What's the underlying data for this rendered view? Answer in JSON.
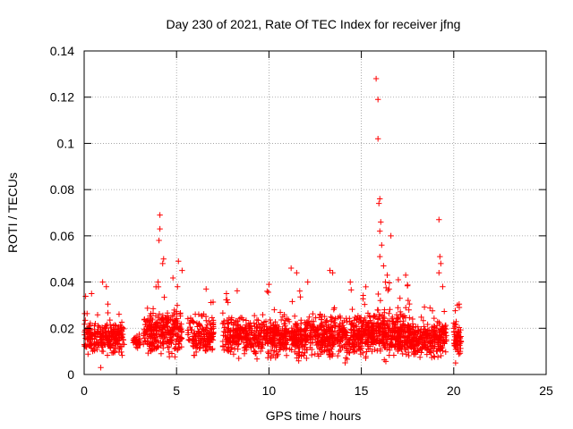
{
  "chart_data": {
    "type": "scatter",
    "title": "Day 230 of 2021, Rate Of TEC Index for receiver jfng",
    "xlabel": "GPS time / hours",
    "ylabel": "ROTI / TECUs",
    "xlim": [
      0,
      25
    ],
    "ylim": [
      0,
      0.14
    ],
    "x_ticks": [
      0,
      5,
      10,
      15,
      20,
      25
    ],
    "y_ticks": [
      0,
      0.02,
      0.04,
      0.06,
      0.08,
      0.1,
      0.12,
      0.14
    ],
    "grid": true,
    "marker": "+",
    "color": "#ff0000",
    "x_tick_labels": [
      "0",
      "5",
      "10",
      "15",
      "20",
      "25"
    ],
    "y_tick_labels": [
      "0",
      "0.02",
      "0.04",
      "0.06",
      "0.08",
      "0.1",
      "0.12",
      "0.14"
    ],
    "segments": [
      {
        "x_start": 0.0,
        "x_end": 2.2,
        "y_base": 0.016,
        "y_spread": 0.006,
        "count": 260
      },
      {
        "x_start": 2.65,
        "x_end": 3.05,
        "y_base": 0.014,
        "y_spread": 0.003,
        "count": 30
      },
      {
        "x_start": 3.2,
        "x_end": 5.3,
        "y_base": 0.018,
        "y_spread": 0.008,
        "count": 300
      },
      {
        "x_start": 5.6,
        "x_end": 7.0,
        "y_base": 0.017,
        "y_spread": 0.007,
        "count": 160
      },
      {
        "x_start": 7.5,
        "x_end": 13.0,
        "y_base": 0.016,
        "y_spread": 0.007,
        "count": 700
      },
      {
        "x_start": 13.0,
        "x_end": 17.6,
        "y_base": 0.017,
        "y_spread": 0.008,
        "count": 700
      },
      {
        "x_start": 17.6,
        "x_end": 19.6,
        "y_base": 0.015,
        "y_spread": 0.006,
        "count": 280
      },
      {
        "x_start": 20.0,
        "x_end": 20.4,
        "y_base": 0.015,
        "y_spread": 0.006,
        "count": 60
      }
    ],
    "points": [
      [
        15.8,
        0.128
      ],
      [
        15.9,
        0.119
      ],
      [
        15.9,
        0.102
      ],
      [
        16.0,
        0.076
      ],
      [
        15.95,
        0.074
      ],
      [
        16.05,
        0.066
      ],
      [
        16.0,
        0.062
      ],
      [
        16.1,
        0.056
      ],
      [
        16.0,
        0.051
      ],
      [
        16.2,
        0.047
      ],
      [
        16.4,
        0.043
      ],
      [
        16.6,
        0.06
      ],
      [
        16.3,
        0.04
      ],
      [
        16.5,
        0.037
      ],
      [
        4.1,
        0.069
      ],
      [
        4.1,
        0.063
      ],
      [
        4.05,
        0.058
      ],
      [
        4.3,
        0.05
      ],
      [
        4.25,
        0.048
      ],
      [
        4.0,
        0.04
      ],
      [
        5.1,
        0.049
      ],
      [
        5.3,
        0.045
      ],
      [
        5.05,
        0.038
      ],
      [
        19.2,
        0.067
      ],
      [
        19.25,
        0.051
      ],
      [
        19.3,
        0.048
      ],
      [
        19.2,
        0.044
      ],
      [
        19.4,
        0.038
      ],
      [
        11.2,
        0.046
      ],
      [
        11.5,
        0.044
      ],
      [
        10.0,
        0.039
      ],
      [
        13.3,
        0.045
      ],
      [
        13.45,
        0.044
      ],
      [
        12.1,
        0.04
      ],
      [
        14.4,
        0.04
      ],
      [
        17.4,
        0.043
      ],
      [
        17.0,
        0.041
      ],
      [
        1.0,
        0.04
      ],
      [
        0.4,
        0.035
      ],
      [
        6.6,
        0.037
      ],
      [
        7.7,
        0.035
      ],
      [
        9.9,
        0.036
      ],
      [
        1.2,
        0.038
      ],
      [
        20.2,
        0.03
      ],
      [
        20.3,
        0.029
      ],
      [
        20.1,
        0.005
      ],
      [
        20.35,
        0.01
      ],
      [
        0.9,
        0.003
      ]
    ]
  }
}
